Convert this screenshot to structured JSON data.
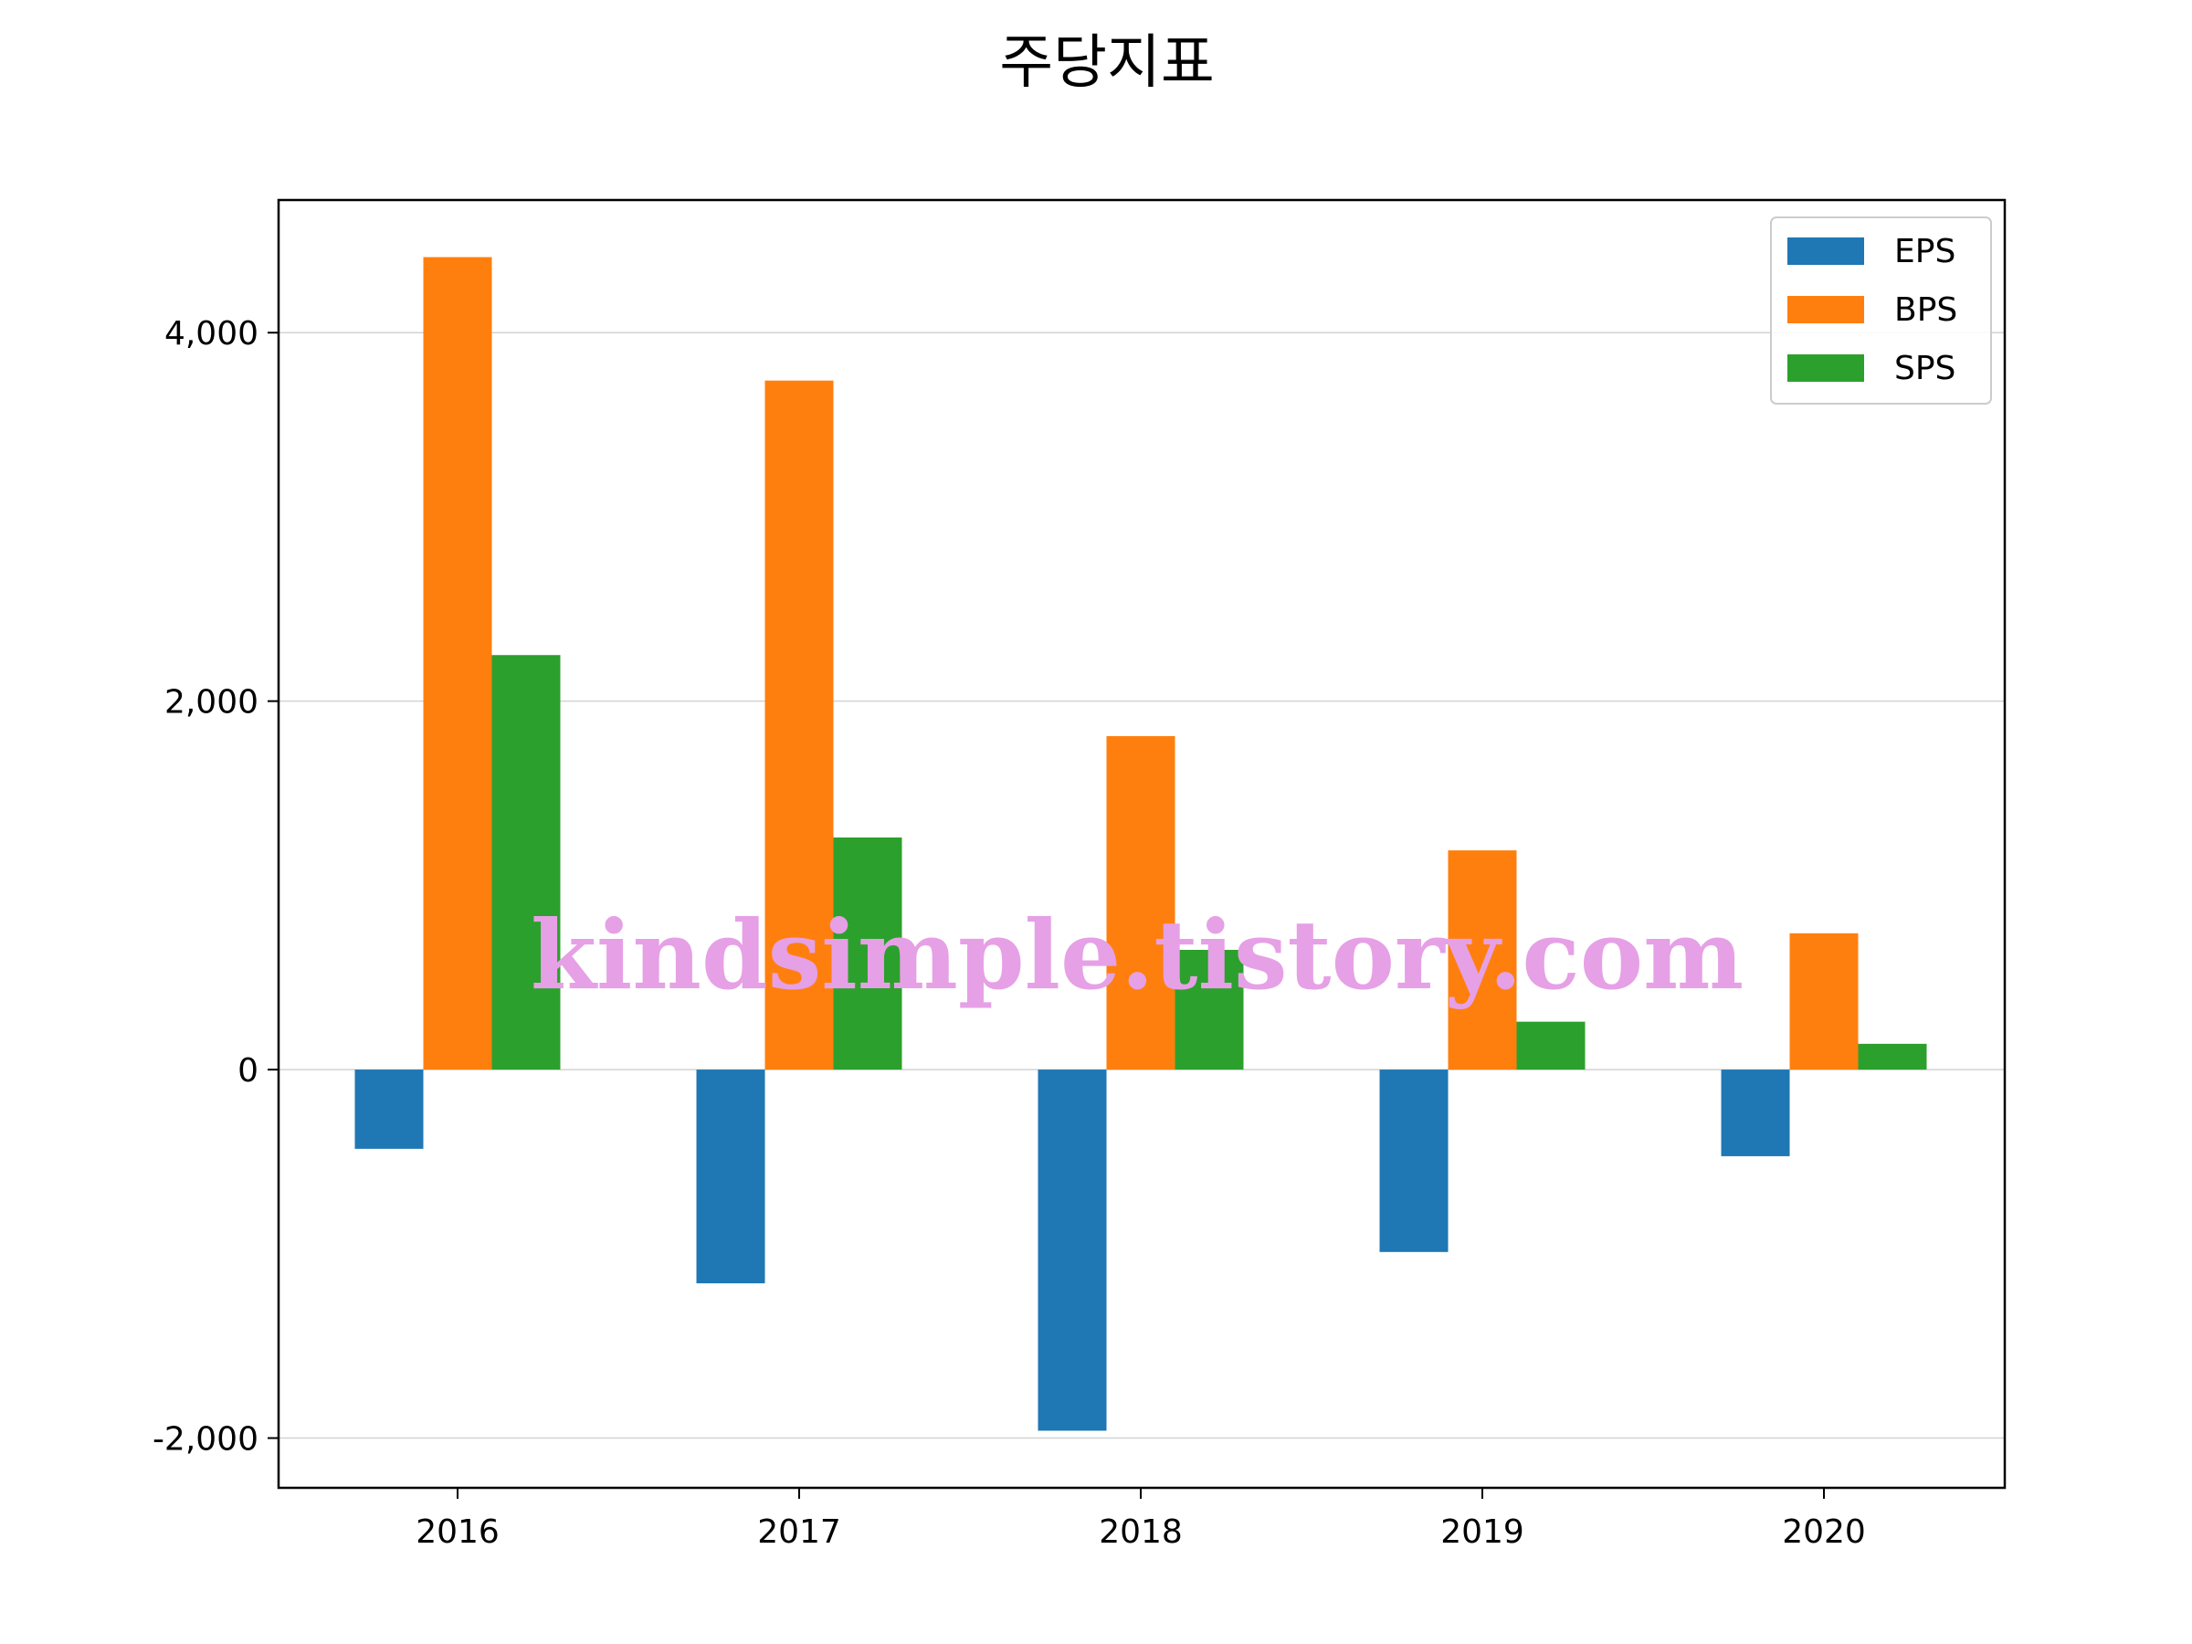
{
  "chart_data": {
    "type": "bar",
    "title": "주당지표",
    "xlabel": "",
    "ylabel": "",
    "categories": [
      "2016",
      "2017",
      "2018",
      "2019",
      "2020"
    ],
    "series": [
      {
        "name": "EPS",
        "color": "#1f77b4",
        "values": [
          -430,
          -1160,
          -1960,
          -990,
          -470
        ]
      },
      {
        "name": "BPS",
        "color": "#ff7f0e",
        "values": [
          4410,
          3740,
          1810,
          1190,
          740
        ]
      },
      {
        "name": "SPS",
        "color": "#2ca02c",
        "values": [
          2250,
          1260,
          650,
          260,
          140
        ]
      }
    ],
    "ylim": [
      -2270,
      4720
    ],
    "yticks": [
      -2000,
      0,
      2000,
      4000
    ],
    "ytick_labels": [
      "-2,000",
      "0",
      "2,000",
      "4,000"
    ],
    "grid": "y",
    "legend": "top-right"
  },
  "watermark": "kindsimple.tistory.com"
}
